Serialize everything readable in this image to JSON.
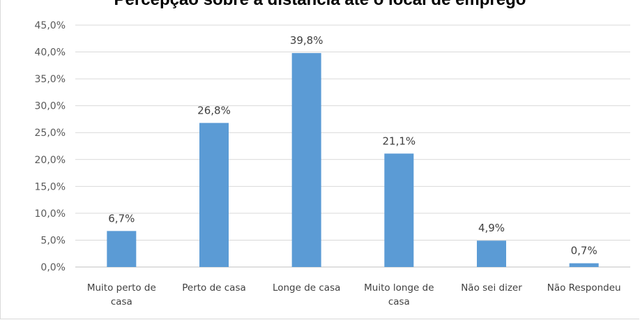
{
  "chart_data": {
    "type": "bar",
    "title": "Percepção sobre a distância até o local de emprego",
    "categories": [
      "Muito perto de casa",
      "Perto de casa",
      "Longe de casa",
      "Muito longe de casa",
      "Não sei dizer",
      "Não Respondeu"
    ],
    "category_lines": [
      [
        "Muito perto de",
        "casa"
      ],
      [
        "Perto de casa"
      ],
      [
        "Longe de casa"
      ],
      [
        "Muito longe de",
        "casa"
      ],
      [
        "Não sei dizer"
      ],
      [
        "Não Respondeu"
      ]
    ],
    "values": [
      6.7,
      26.8,
      39.8,
      21.1,
      4.9,
      0.7
    ],
    "data_labels": [
      "6,7%",
      "26,8%",
      "39,8%",
      "21,1%",
      "4,9%",
      "0,7%"
    ],
    "ylim": [
      0,
      45
    ],
    "yticks": [
      0,
      5,
      10,
      15,
      20,
      25,
      30,
      35,
      40,
      45
    ],
    "ytick_labels": [
      "0,0%",
      "5,0%",
      "10,0%",
      "15,0%",
      "20,0%",
      "25,0%",
      "30,0%",
      "35,0%",
      "40,0%",
      "45,0%"
    ],
    "xlabel": "",
    "ylabel": "",
    "grid": true,
    "legend": "none",
    "bar_color": "#5b9bd5",
    "grid_color": "#d9d9d9"
  }
}
